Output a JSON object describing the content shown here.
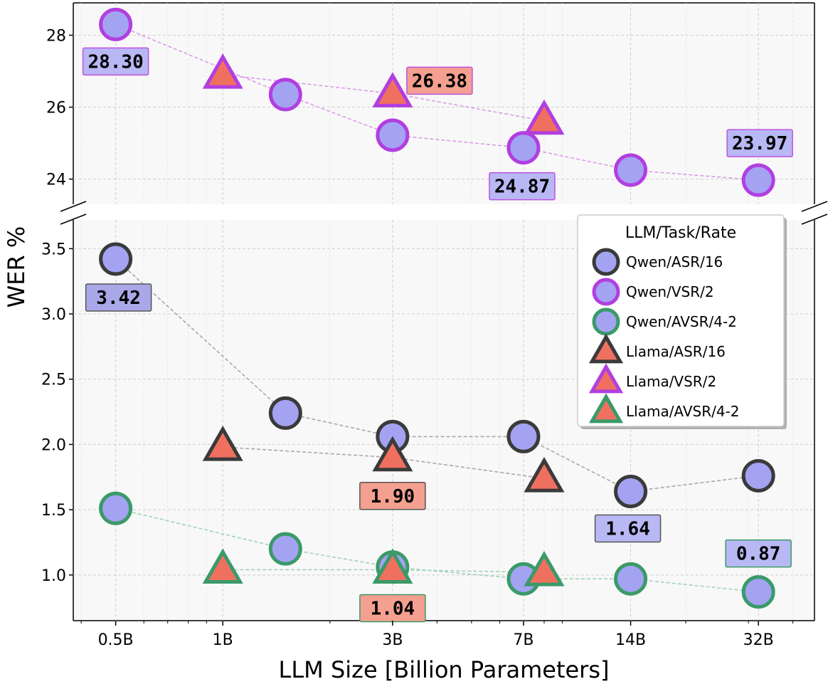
{
  "chart_data": {
    "type": "scatter",
    "xlabel": "LLM Size [Billion Parameters]",
    "ylabel": "WER %",
    "x_scale": "log",
    "x_ticks": [
      {
        "value": 0.5,
        "label": "0.5B"
      },
      {
        "value": 1,
        "label": "1B"
      },
      {
        "value": 3,
        "label": "3B"
      },
      {
        "value": 7,
        "label": "7B"
      },
      {
        "value": 14,
        "label": "14B"
      },
      {
        "value": 32,
        "label": "32B"
      }
    ],
    "axis_break": true,
    "upper_ylim": [
      23.3,
      28.9
    ],
    "upper_yticks": [
      24,
      26,
      28
    ],
    "lower_ylim": [
      0.65,
      3.72
    ],
    "lower_yticks": [
      1.0,
      1.5,
      2.0,
      2.5,
      3.0,
      3.5
    ],
    "lower_ytick_labels": [
      "1.0",
      "1.5",
      "2.0",
      "2.5",
      "3.0",
      "3.5"
    ],
    "grid": true,
    "legend": {
      "title": "LLM/Task/Rate",
      "position": "right",
      "entries": [
        "Qwen/ASR/16",
        "Qwen/VSR/2",
        "Qwen/AVSR/4-2",
        "Llama/ASR/16",
        "Llama/VSR/2",
        "Llama/AVSR/4-2"
      ]
    },
    "series": [
      {
        "name": "Qwen/ASR/16",
        "panel": "lower",
        "marker": "circle",
        "edge": "#3a3a3a",
        "fill": "#a3a3f2",
        "line": "#a8a8a8",
        "points": [
          {
            "x": 0.5,
            "y": 3.42
          },
          {
            "x": 1.5,
            "y": 2.24
          },
          {
            "x": 3,
            "y": 2.06
          },
          {
            "x": 7,
            "y": 2.06
          },
          {
            "x": 14,
            "y": 1.64
          },
          {
            "x": 32,
            "y": 1.76
          }
        ]
      },
      {
        "name": "Qwen/VSR/2",
        "panel": "upper",
        "marker": "circle",
        "edge": "#b23ee0",
        "fill": "#a3a3f2",
        "line": "#dc9ae8",
        "points": [
          {
            "x": 0.5,
            "y": 28.3
          },
          {
            "x": 1.5,
            "y": 26.35
          },
          {
            "x": 3,
            "y": 25.22
          },
          {
            "x": 7,
            "y": 24.87
          },
          {
            "x": 14,
            "y": 24.25
          },
          {
            "x": 32,
            "y": 23.97
          }
        ]
      },
      {
        "name": "Qwen/AVSR/4-2",
        "panel": "lower",
        "marker": "circle",
        "edge": "#3a9a68",
        "fill": "#a3a3f2",
        "line": "#9fd3b8",
        "points": [
          {
            "x": 0.5,
            "y": 1.51
          },
          {
            "x": 1.5,
            "y": 1.2
          },
          {
            "x": 3,
            "y": 1.06
          },
          {
            "x": 7,
            "y": 0.97
          },
          {
            "x": 14,
            "y": 0.97
          },
          {
            "x": 32,
            "y": 0.87
          }
        ]
      },
      {
        "name": "Llama/ASR/16",
        "panel": "lower",
        "marker": "triangle",
        "edge": "#3a3a3a",
        "fill": "#f07060",
        "line": "#a8a8a8",
        "points": [
          {
            "x": 1,
            "y": 1.98
          },
          {
            "x": 3,
            "y": 1.9
          },
          {
            "x": 8,
            "y": 1.74
          }
        ]
      },
      {
        "name": "Llama/VSR/2",
        "panel": "upper",
        "marker": "triangle",
        "edge": "#b23ee0",
        "fill": "#f07060",
        "line": "#dc9ae8",
        "points": [
          {
            "x": 1,
            "y": 26.9
          },
          {
            "x": 3,
            "y": 26.38
          },
          {
            "x": 8,
            "y": 25.62
          }
        ]
      },
      {
        "name": "Llama/AVSR/4-2",
        "panel": "lower",
        "marker": "triangle",
        "edge": "#3a9a68",
        "fill": "#f07060",
        "line": "#9fd3b8",
        "points": [
          {
            "x": 1,
            "y": 1.04
          },
          {
            "x": 3,
            "y": 1.04
          },
          {
            "x": 8,
            "y": 1.02
          }
        ]
      }
    ],
    "annotations": [
      {
        "text": "28.30",
        "panel": "upper",
        "x": 0.5,
        "y": 28.3,
        "fill": "#b8b8f4",
        "edge": "#c050e0",
        "dx": 0,
        "dy": 52
      },
      {
        "text": "26.38",
        "panel": "upper",
        "x": 3,
        "y": 26.38,
        "fill": "#f4a090",
        "edge": "#c050e0",
        "dx": 66,
        "dy": -18
      },
      {
        "text": "24.87",
        "panel": "upper",
        "x": 7,
        "y": 24.87,
        "fill": "#b8b8f4",
        "edge": "#c050e0",
        "dx": -2,
        "dy": 54
      },
      {
        "text": "23.97",
        "panel": "upper",
        "x": 32,
        "y": 23.97,
        "fill": "#b8b8f4",
        "edge": "#c050e0",
        "dx": 2,
        "dy": -52
      },
      {
        "text": "3.42",
        "panel": "lower",
        "x": 0.5,
        "y": 3.42,
        "fill": "#a8a8e8",
        "edge": "#555555",
        "dx": 4,
        "dy": 54
      },
      {
        "text": "1.90",
        "panel": "lower",
        "x": 3,
        "y": 1.9,
        "fill": "#f4a090",
        "edge": "#555555",
        "dx": 0,
        "dy": 54
      },
      {
        "text": "1.64",
        "panel": "lower",
        "x": 14,
        "y": 1.64,
        "fill": "#b8b8f4",
        "edge": "#555555",
        "dx": -4,
        "dy": 52
      },
      {
        "text": "0.87",
        "panel": "lower",
        "x": 32,
        "y": 0.87,
        "fill": "#b8b8f4",
        "edge": "#3a9a68",
        "dx": 0,
        "dy": -54
      },
      {
        "text": "1.04",
        "panel": "lower",
        "x": 3,
        "y": 1.04,
        "fill": "#f4a090",
        "edge": "#3a9a68",
        "dx": 0,
        "dy": 54
      }
    ]
  }
}
